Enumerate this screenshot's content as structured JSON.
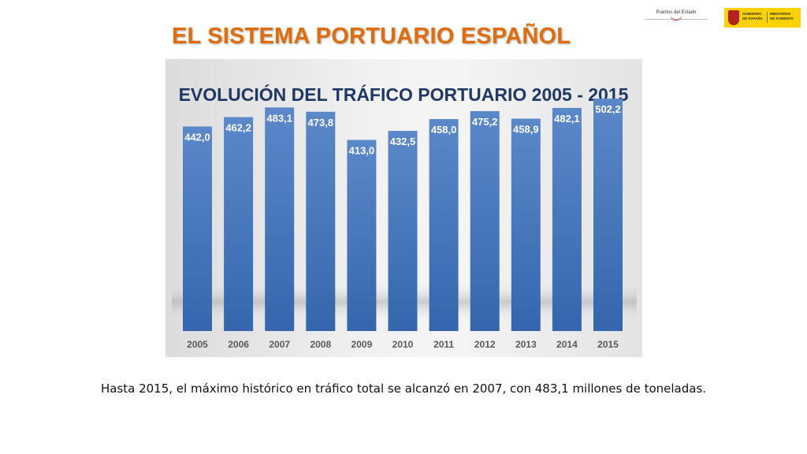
{
  "slide": {
    "title": "EL SISTEMA PORTUARIO ESPAÑOL",
    "caption": "Hasta 2015, el máximo histórico en tráfico total se alcanzó en 2007, con 483,1 millones de toneladas.",
    "logos": {
      "puertos": "Puertos del Estado",
      "gobierno_line1": "GOBIERNO",
      "gobierno_line2": "DE ESPAÑA",
      "ministerio_line1": "MINISTERIO",
      "ministerio_line2": "DE FOMENTO"
    }
  },
  "colors": {
    "title": "#e36c0a",
    "chart_title": "#1f3864",
    "bar_light": "#5b88c9",
    "bar_dark": "#3566ad",
    "label": "#ffffff",
    "tick": "#595959"
  },
  "chart_data": {
    "type": "bar",
    "title": "EVOLUCIÓN DEL TRÁFICO PORTUARIO 2005 - 2015",
    "categories": [
      "2005",
      "2006",
      "2007",
      "2008",
      "2009",
      "2010",
      "2011",
      "2012",
      "2013",
      "2014",
      "2015"
    ],
    "values": [
      442.0,
      462.2,
      483.1,
      473.8,
      413.0,
      432.5,
      458.0,
      475.2,
      458.9,
      482.1,
      502.2
    ],
    "value_labels": [
      "442,0",
      "462,2",
      "483,1",
      "473,8",
      "413,0",
      "432,5",
      "458,0",
      "475,2",
      "458,9",
      "482,1",
      "502,2"
    ],
    "ylim": [
      0,
      545
    ],
    "xlabel": "",
    "ylabel": "",
    "grid": false,
    "legend": "none"
  }
}
